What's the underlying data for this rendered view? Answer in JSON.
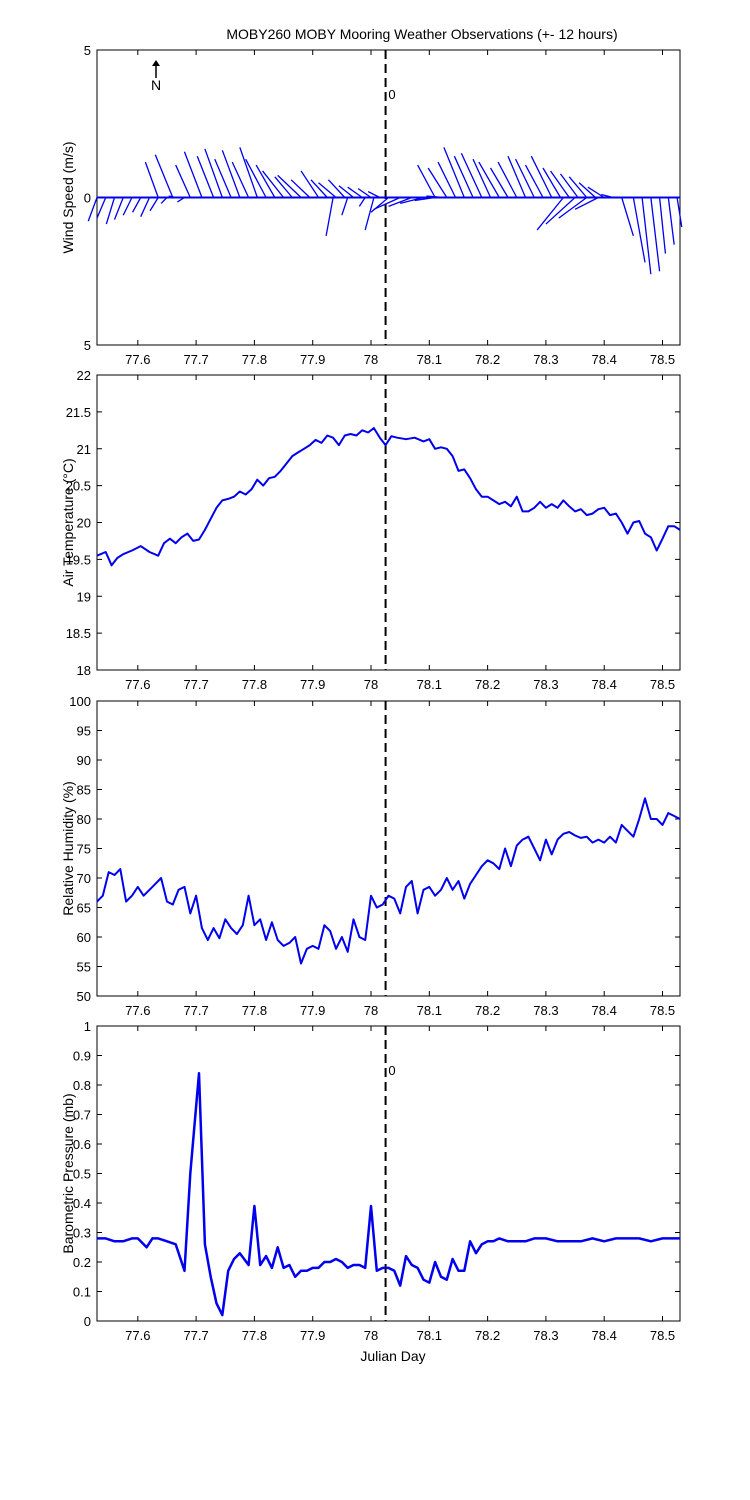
{
  "title": "MOBY260 MOBY Mooring Weather Observations (+- 12 hours)",
  "colors": {
    "series": "#0000ee",
    "marker": "#000000",
    "zero_label": "#cc0000"
  },
  "chart_data": [
    {
      "type": "quiver",
      "ylabel": "Wind Speed (m/s)",
      "xlim": [
        77.53,
        78.53
      ],
      "ylim": [
        -5,
        5
      ],
      "yticks": [
        5,
        0,
        5
      ],
      "xticks": [
        "77.6",
        "77.7",
        "77.8",
        "77.9",
        "78",
        "78.1",
        "78.2",
        "78.3",
        "78.4",
        "78.5"
      ],
      "north_label": "N",
      "event_label": "0",
      "event_x": 78.025,
      "vectors": [
        {
          "x": 77.53,
          "u": 0.015,
          "v": -0.8
        },
        {
          "x": 77.545,
          "u": 0.015,
          "v": -0.7
        },
        {
          "x": 77.56,
          "u": 0.014,
          "v": -0.9
        },
        {
          "x": 77.575,
          "u": 0.015,
          "v": -0.75
        },
        {
          "x": 77.59,
          "u": 0.015,
          "v": -0.6
        },
        {
          "x": 77.605,
          "u": 0.014,
          "v": -0.5
        },
        {
          "x": 77.62,
          "u": 0.015,
          "v": -0.65
        },
        {
          "x": 77.635,
          "u": 0.014,
          "v": -0.45
        },
        {
          "x": 77.65,
          "u": 0.01,
          "v": -0.2
        },
        {
          "x": 77.665,
          "u": 0.012,
          "v": 0.05
        },
        {
          "x": 77.68,
          "u": 0.012,
          "v": -0.15
        },
        {
          "x": 77.635,
          "u": 0.022,
          "v": 1.2
        },
        {
          "x": 77.66,
          "u": 0.03,
          "v": 1.45
        },
        {
          "x": 77.69,
          "u": 0.025,
          "v": 1.1
        },
        {
          "x": 77.71,
          "u": 0.03,
          "v": 1.55
        },
        {
          "x": 77.73,
          "u": 0.028,
          "v": 1.4
        },
        {
          "x": 77.745,
          "u": 0.03,
          "v": 1.65
        },
        {
          "x": 77.76,
          "u": 0.028,
          "v": 1.3
        },
        {
          "x": 77.775,
          "u": 0.03,
          "v": 1.6
        },
        {
          "x": 77.79,
          "u": 0.028,
          "v": 1.2
        },
        {
          "x": 77.805,
          "u": 0.03,
          "v": 1.7
        },
        {
          "x": 77.82,
          "u": 0.035,
          "v": 1.3
        },
        {
          "x": 77.835,
          "u": 0.032,
          "v": 1.1
        },
        {
          "x": 77.85,
          "u": 0.036,
          "v": 0.9
        },
        {
          "x": 77.865,
          "u": 0.03,
          "v": 0.7
        },
        {
          "x": 77.88,
          "u": 0.04,
          "v": 0.75
        },
        {
          "x": 77.895,
          "u": 0.032,
          "v": 0.6
        },
        {
          "x": 77.91,
          "u": 0.03,
          "v": 0.9
        },
        {
          "x": 77.925,
          "u": 0.028,
          "v": 0.6
        },
        {
          "x": 77.94,
          "u": 0.03,
          "v": 0.5
        },
        {
          "x": 77.955,
          "u": 0.028,
          "v": 0.6
        },
        {
          "x": 77.97,
          "u": 0.025,
          "v": 0.4
        },
        {
          "x": 77.985,
          "u": 0.025,
          "v": 0.35
        },
        {
          "x": 78.0,
          "u": 0.022,
          "v": 0.3
        },
        {
          "x": 78.015,
          "u": 0.02,
          "v": 0.2
        },
        {
          "x": 77.935,
          "u": 0.012,
          "v": -1.3
        },
        {
          "x": 77.96,
          "u": 0.01,
          "v": -0.6
        },
        {
          "x": 77.99,
          "u": 0.01,
          "v": -0.3
        },
        {
          "x": 78.005,
          "u": 0.015,
          "v": -1.1
        },
        {
          "x": 78.03,
          "u": 0.03,
          "v": -0.5
        },
        {
          "x": 78.05,
          "u": 0.045,
          "v": -0.4
        },
        {
          "x": 78.07,
          "u": 0.04,
          "v": -0.3
        },
        {
          "x": 78.09,
          "u": 0.04,
          "v": -0.2
        },
        {
          "x": 78.11,
          "u": 0.035,
          "v": -0.1
        },
        {
          "x": 78.125,
          "u": 0.03,
          "v": 0.05
        },
        {
          "x": 78.11,
          "u": 0.03,
          "v": 1.1
        },
        {
          "x": 78.13,
          "u": 0.032,
          "v": 1.0
        },
        {
          "x": 78.145,
          "u": 0.03,
          "v": 1.2
        },
        {
          "x": 78.16,
          "u": 0.035,
          "v": 1.7
        },
        {
          "x": 78.175,
          "u": 0.032,
          "v": 1.4
        },
        {
          "x": 78.19,
          "u": 0.035,
          "v": 1.5
        },
        {
          "x": 78.205,
          "u": 0.03,
          "v": 1.3
        },
        {
          "x": 78.22,
          "u": 0.035,
          "v": 1.2
        },
        {
          "x": 78.235,
          "u": 0.03,
          "v": 1.0
        },
        {
          "x": 78.25,
          "u": 0.032,
          "v": 1.2
        },
        {
          "x": 78.265,
          "u": 0.03,
          "v": 1.4
        },
        {
          "x": 78.28,
          "u": 0.032,
          "v": 1.3
        },
        {
          "x": 78.295,
          "u": 0.03,
          "v": 1.1
        },
        {
          "x": 78.31,
          "u": 0.035,
          "v": 1.4
        },
        {
          "x": 78.325,
          "u": 0.03,
          "v": 1.0
        },
        {
          "x": 78.34,
          "u": 0.032,
          "v": 0.9
        },
        {
          "x": 78.355,
          "u": 0.03,
          "v": 0.8
        },
        {
          "x": 78.37,
          "u": 0.03,
          "v": 0.7
        },
        {
          "x": 78.385,
          "u": 0.028,
          "v": 0.5
        },
        {
          "x": 78.4,
          "u": 0.028,
          "v": 0.35
        },
        {
          "x": 78.415,
          "u": 0.02,
          "v": 0.1
        },
        {
          "x": 78.33,
          "u": 0.045,
          "v": -1.1
        },
        {
          "x": 78.35,
          "u": 0.05,
          "v": -0.9
        },
        {
          "x": 78.37,
          "u": 0.048,
          "v": -0.7
        },
        {
          "x": 78.39,
          "u": 0.04,
          "v": -0.4
        },
        {
          "x": 78.43,
          "u": -0.02,
          "v": -1.3
        },
        {
          "x": 78.45,
          "u": -0.02,
          "v": -2.2
        },
        {
          "x": 78.465,
          "u": -0.015,
          "v": -2.6
        },
        {
          "x": 78.48,
          "u": -0.015,
          "v": -2.5
        },
        {
          "x": 78.495,
          "u": -0.01,
          "v": -1.9
        },
        {
          "x": 78.51,
          "u": -0.01,
          "v": -1.6
        },
        {
          "x": 78.525,
          "u": -0.008,
          "v": -1.0
        }
      ]
    },
    {
      "type": "line",
      "ylabel": "Air Temperature (°C)",
      "xlim": [
        77.53,
        78.53
      ],
      "ylim": [
        18,
        22
      ],
      "yticks": [
        "18",
        "18.5",
        "19",
        "19.5",
        "20",
        "20.5",
        "21",
        "21.5",
        "22"
      ],
      "xticks": [
        "77.6",
        "77.7",
        "77.8",
        "77.9",
        "78",
        "78.1",
        "78.2",
        "78.3",
        "78.4",
        "78.5"
      ],
      "event_x": 78.025,
      "x": [
        77.53,
        77.545,
        77.555,
        77.565,
        77.575,
        77.59,
        77.605,
        77.62,
        77.635,
        77.645,
        77.655,
        77.665,
        77.675,
        77.685,
        77.695,
        77.705,
        77.715,
        77.725,
        77.735,
        77.745,
        77.755,
        77.765,
        77.775,
        77.785,
        77.795,
        77.805,
        77.815,
        77.825,
        77.835,
        77.845,
        77.855,
        77.865,
        77.875,
        77.885,
        77.895,
        77.905,
        77.915,
        77.925,
        77.935,
        77.945,
        77.955,
        77.965,
        77.975,
        77.985,
        77.995,
        78.005,
        78.015,
        78.025,
        78.035,
        78.045,
        78.06,
        78.075,
        78.09,
        78.1,
        78.11,
        78.12,
        78.13,
        78.14,
        78.15,
        78.16,
        78.17,
        78.18,
        78.19,
        78.2,
        78.21,
        78.22,
        78.23,
        78.24,
        78.25,
        78.26,
        78.27,
        78.28,
        78.29,
        78.3,
        78.31,
        78.32,
        78.33,
        78.34,
        78.35,
        78.36,
        78.37,
        78.38,
        78.39,
        78.4,
        78.41,
        78.42,
        78.43,
        78.44,
        78.45,
        78.46,
        78.47,
        78.48,
        78.49,
        78.5,
        78.51,
        78.52,
        78.53
      ],
      "values": [
        19.55,
        19.6,
        19.42,
        19.52,
        19.57,
        19.62,
        19.68,
        19.6,
        19.55,
        19.72,
        19.78,
        19.72,
        19.8,
        19.85,
        19.75,
        19.77,
        19.9,
        20.05,
        20.2,
        20.3,
        20.32,
        20.35,
        20.42,
        20.38,
        20.45,
        20.58,
        20.5,
        20.6,
        20.62,
        20.7,
        20.8,
        20.9,
        20.95,
        21.0,
        21.05,
        21.12,
        21.08,
        21.18,
        21.15,
        21.05,
        21.18,
        21.2,
        21.18,
        21.25,
        21.22,
        21.28,
        21.15,
        21.05,
        21.17,
        21.15,
        21.13,
        21.15,
        21.1,
        21.13,
        21.0,
        21.02,
        21.0,
        20.9,
        20.7,
        20.72,
        20.6,
        20.45,
        20.35,
        20.35,
        20.3,
        20.25,
        20.28,
        20.22,
        20.35,
        20.15,
        20.15,
        20.2,
        20.28,
        20.2,
        20.25,
        20.2,
        20.3,
        20.22,
        20.15,
        20.18,
        20.1,
        20.12,
        20.18,
        20.2,
        20.1,
        20.12,
        20.0,
        19.85,
        20.0,
        20.02,
        19.85,
        19.8,
        19.62,
        19.78,
        19.95,
        19.95,
        19.9
      ]
    },
    {
      "type": "line",
      "ylabel": "Relative Humidity (%)",
      "xlim": [
        77.53,
        78.53
      ],
      "ylim": [
        50,
        100
      ],
      "yticks": [
        "50",
        "55",
        "60",
        "65",
        "70",
        "75",
        "80",
        "85",
        "90",
        "95",
        "100"
      ],
      "xticks": [
        "77.6",
        "77.7",
        "77.8",
        "77.9",
        "78",
        "78.1",
        "78.2",
        "78.3",
        "78.4",
        "78.5"
      ],
      "event_x": 78.025,
      "x": [
        77.53,
        77.54,
        77.55,
        77.56,
        77.57,
        77.58,
        77.59,
        77.6,
        77.61,
        77.62,
        77.63,
        77.64,
        77.65,
        77.66,
        77.67,
        77.68,
        77.69,
        77.7,
        77.71,
        77.72,
        77.73,
        77.74,
        77.75,
        77.76,
        77.77,
        77.78,
        77.79,
        77.8,
        77.81,
        77.82,
        77.83,
        77.84,
        77.85,
        77.86,
        77.87,
        77.88,
        77.89,
        77.9,
        77.91,
        77.92,
        77.93,
        77.94,
        77.95,
        77.96,
        77.97,
        77.98,
        77.99,
        78.0,
        78.01,
        78.02,
        78.03,
        78.04,
        78.05,
        78.06,
        78.07,
        78.08,
        78.09,
        78.1,
        78.11,
        78.12,
        78.13,
        78.14,
        78.15,
        78.16,
        78.17,
        78.18,
        78.19,
        78.2,
        78.21,
        78.22,
        78.23,
        78.24,
        78.25,
        78.26,
        78.27,
        78.28,
        78.29,
        78.3,
        78.31,
        78.32,
        78.33,
        78.34,
        78.35,
        78.36,
        78.37,
        78.38,
        78.39,
        78.4,
        78.41,
        78.42,
        78.43,
        78.44,
        78.45,
        78.46,
        78.47,
        78.48,
        78.49,
        78.5,
        78.51,
        78.52,
        78.53
      ],
      "values": [
        66,
        67,
        71,
        70.5,
        71.5,
        66,
        67,
        68.5,
        67,
        68,
        69,
        70,
        66,
        65.5,
        68,
        68.5,
        64,
        67,
        61.5,
        59.5,
        61.5,
        59.8,
        63,
        61.5,
        60.5,
        62,
        67,
        62,
        63,
        59.5,
        62.5,
        59.5,
        58.5,
        59,
        60,
        55.5,
        58,
        58.5,
        58,
        62,
        61,
        58,
        60,
        57.5,
        63,
        60,
        59.5,
        67,
        65,
        65.5,
        67,
        66.5,
        64,
        68.5,
        69.5,
        64,
        68,
        68.5,
        67,
        68,
        70,
        68,
        69.5,
        66.5,
        69,
        70.5,
        72,
        73,
        72.5,
        71.5,
        75,
        72,
        75.5,
        76.5,
        77,
        75,
        73,
        76.5,
        74,
        76.5,
        77.5,
        77.8,
        77.2,
        76.8,
        77,
        76,
        76.5,
        76,
        77,
        76,
        79,
        78,
        77,
        80,
        83.5,
        80,
        80,
        79,
        81,
        80.5,
        80
      ]
    },
    {
      "type": "line",
      "ylabel": "Barometric Pressure (mb)",
      "xlabel": "Julian Day",
      "xlim": [
        77.53,
        78.53
      ],
      "ylim": [
        0,
        1
      ],
      "yticks": [
        "0",
        "0.1",
        "0.2",
        "0.3",
        "0.4",
        "0.5",
        "0.6",
        "0.7",
        "0.8",
        "0.9",
        "1"
      ],
      "xticks": [
        "77.6",
        "77.7",
        "77.8",
        "77.9",
        "78",
        "78.1",
        "78.2",
        "78.3",
        "78.4",
        "78.5"
      ],
      "event_label": "0",
      "event_x": 78.025,
      "x": [
        77.53,
        77.545,
        77.56,
        77.575,
        77.59,
        77.6,
        77.615,
        77.625,
        77.635,
        77.65,
        77.665,
        77.68,
        77.69,
        77.705,
        77.715,
        77.725,
        77.735,
        77.745,
        77.755,
        77.765,
        77.775,
        77.79,
        77.8,
        77.81,
        77.82,
        77.83,
        77.84,
        77.85,
        77.86,
        77.87,
        77.88,
        77.89,
        77.9,
        77.91,
        77.92,
        77.93,
        77.94,
        77.95,
        77.96,
        77.97,
        77.98,
        77.99,
        78.0,
        78.01,
        78.02,
        78.03,
        78.04,
        78.05,
        78.06,
        78.07,
        78.08,
        78.09,
        78.1,
        78.11,
        78.12,
        78.13,
        78.14,
        78.15,
        78.16,
        78.17,
        78.18,
        78.19,
        78.2,
        78.21,
        78.22,
        78.235,
        78.25,
        78.265,
        78.28,
        78.3,
        78.32,
        78.34,
        78.36,
        78.38,
        78.4,
        78.42,
        78.44,
        78.46,
        78.48,
        78.5,
        78.53
      ],
      "values": [
        0.28,
        0.28,
        0.27,
        0.27,
        0.28,
        0.28,
        0.25,
        0.28,
        0.28,
        0.27,
        0.26,
        0.17,
        0.5,
        0.84,
        0.26,
        0.15,
        0.06,
        0.02,
        0.17,
        0.21,
        0.23,
        0.19,
        0.39,
        0.19,
        0.22,
        0.18,
        0.25,
        0.18,
        0.19,
        0.15,
        0.17,
        0.17,
        0.18,
        0.18,
        0.2,
        0.2,
        0.21,
        0.2,
        0.18,
        0.19,
        0.19,
        0.18,
        0.39,
        0.17,
        0.18,
        0.18,
        0.17,
        0.12,
        0.22,
        0.19,
        0.18,
        0.14,
        0.13,
        0.2,
        0.15,
        0.14,
        0.21,
        0.17,
        0.17,
        0.27,
        0.23,
        0.26,
        0.27,
        0.27,
        0.28,
        0.27,
        0.27,
        0.27,
        0.28,
        0.28,
        0.27,
        0.27,
        0.27,
        0.28,
        0.27,
        0.28,
        0.28,
        0.28,
        0.27,
        0.28,
        0.28
      ]
    }
  ]
}
